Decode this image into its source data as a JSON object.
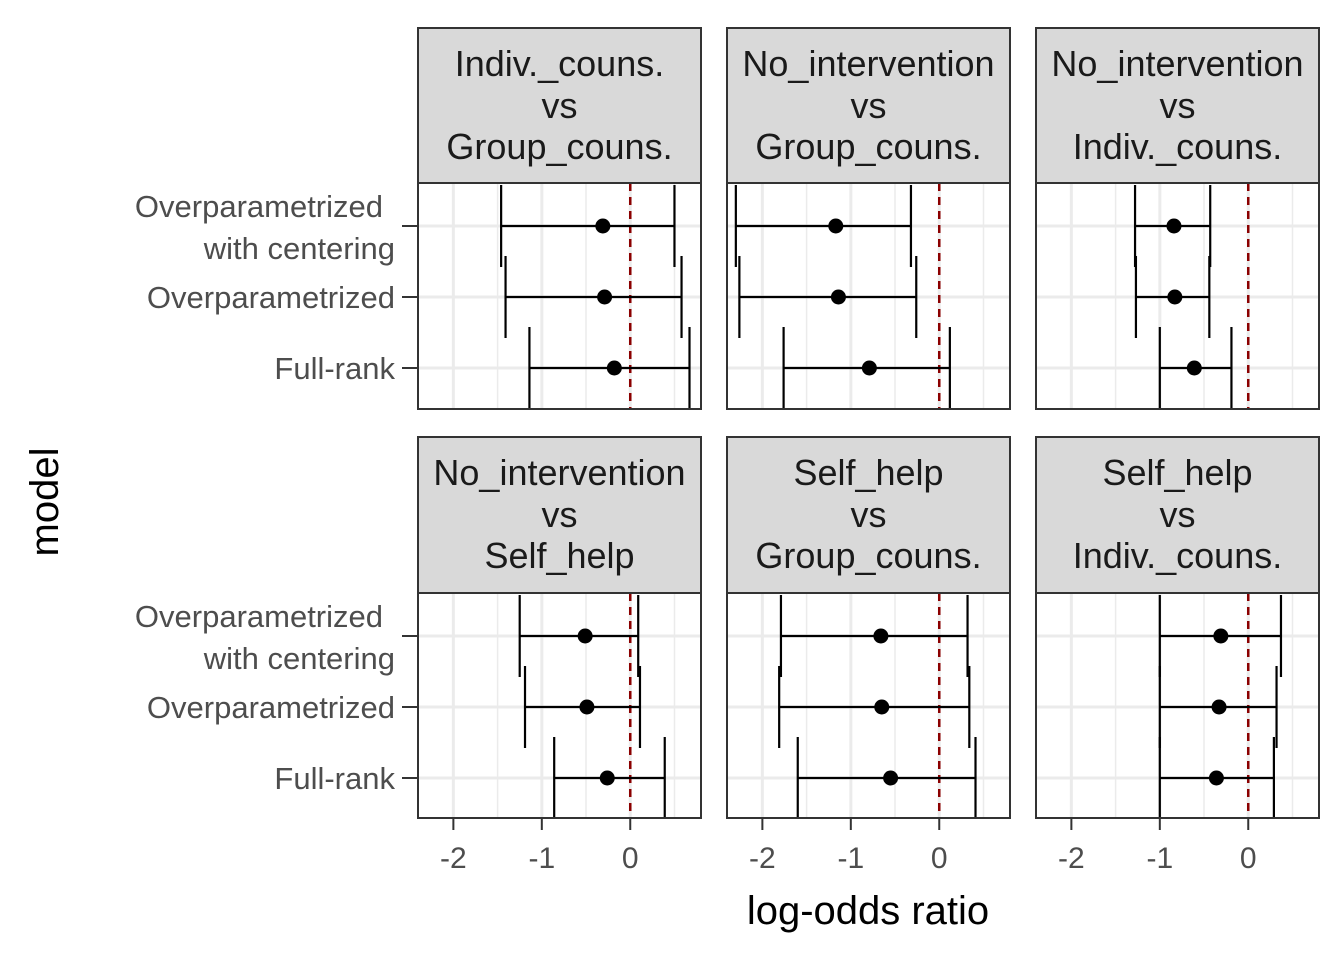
{
  "chart_data": {
    "type": "errorbar",
    "xlabel": "log-odds ratio",
    "ylabel": "model",
    "xlim": [
      -2.4,
      0.8
    ],
    "x_ticks": [
      "-2",
      "-1",
      "0"
    ],
    "x_tick_values": [
      -2,
      -1,
      0
    ],
    "reference_line": {
      "x": 0,
      "style": "dashed",
      "color": "#8b0000"
    },
    "categories": [
      [
        "Overparametrized",
        "with centering"
      ],
      [
        "Overparametrized"
      ],
      [
        "Full-rank"
      ]
    ],
    "grid": true,
    "panels": [
      {
        "title": [
          "Indiv._couns.",
          "vs",
          "Group_couns."
        ],
        "points": [
          {
            "estimate": -0.31,
            "lower": -1.46,
            "upper": 0.5
          },
          {
            "estimate": -0.29,
            "lower": -1.41,
            "upper": 0.58
          },
          {
            "estimate": -0.18,
            "lower": -1.14,
            "upper": 0.67
          }
        ]
      },
      {
        "title": [
          "No_intervention",
          "vs",
          "Group_couns."
        ],
        "points": [
          {
            "estimate": -1.17,
            "lower": -2.3,
            "upper": -0.32
          },
          {
            "estimate": -1.14,
            "lower": -2.26,
            "upper": -0.26
          },
          {
            "estimate": -0.79,
            "lower": -1.76,
            "upper": 0.12
          }
        ]
      },
      {
        "title": [
          "No_intervention",
          "vs",
          "Indiv._couns."
        ],
        "points": [
          {
            "estimate": -0.84,
            "lower": -1.28,
            "upper": -0.43
          },
          {
            "estimate": -0.83,
            "lower": -1.27,
            "upper": -0.44
          },
          {
            "estimate": -0.61,
            "lower": -1.0,
            "upper": -0.19
          }
        ]
      },
      {
        "title": [
          "No_intervention",
          "vs",
          "Self_help"
        ],
        "points": [
          {
            "estimate": -0.51,
            "lower": -1.25,
            "upper": 0.09
          },
          {
            "estimate": -0.49,
            "lower": -1.19,
            "upper": 0.11
          },
          {
            "estimate": -0.26,
            "lower": -0.86,
            "upper": 0.39
          }
        ]
      },
      {
        "title": [
          "Self_help",
          "vs",
          "Group_couns."
        ],
        "points": [
          {
            "estimate": -0.66,
            "lower": -1.79,
            "upper": 0.32
          },
          {
            "estimate": -0.65,
            "lower": -1.81,
            "upper": 0.34
          },
          {
            "estimate": -0.55,
            "lower": -1.6,
            "upper": 0.41
          }
        ]
      },
      {
        "title": [
          "Self_help",
          "vs",
          "Indiv._couns."
        ],
        "points": [
          {
            "estimate": -0.31,
            "lower": -1.0,
            "upper": 0.37
          },
          {
            "estimate": -0.33,
            "lower": -1.0,
            "upper": 0.32
          },
          {
            "estimate": -0.36,
            "lower": -1.0,
            "upper": 0.29
          }
        ]
      }
    ]
  }
}
